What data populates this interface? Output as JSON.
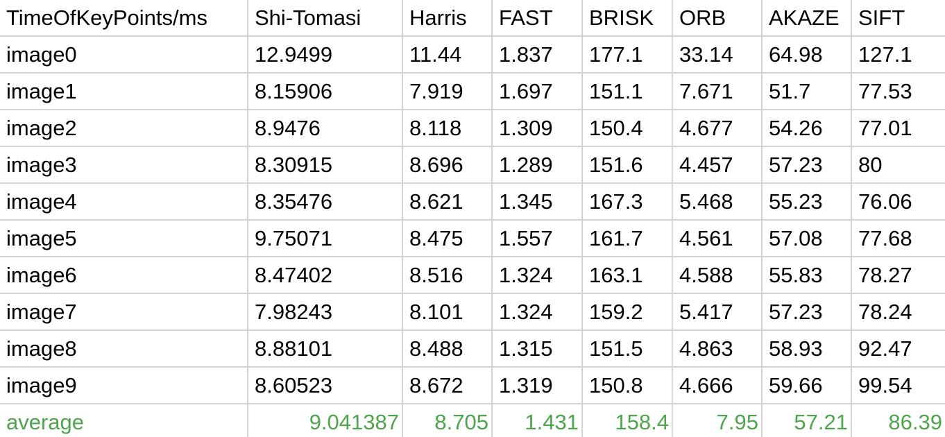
{
  "sheet": {
    "header": [
      "TimeOfKeyPoints/ms",
      "Shi-Tomasi",
      "Harris",
      "FAST",
      "BRISK",
      "ORB",
      "AKAZE",
      "SIFT"
    ],
    "rows": [
      [
        "image0",
        "12.9499",
        "11.44",
        "1.837",
        "177.1",
        "33.14",
        "64.98",
        "127.1"
      ],
      [
        "image1",
        "8.15906",
        "7.919",
        "1.697",
        "151.1",
        "7.671",
        "51.7",
        "77.53"
      ],
      [
        "image2",
        "8.9476",
        "8.118",
        "1.309",
        "150.4",
        "4.677",
        "54.26",
        "77.01"
      ],
      [
        "image3",
        "8.30915",
        "8.696",
        "1.289",
        "151.6",
        "4.457",
        "57.23",
        "80"
      ],
      [
        "image4",
        "8.35476",
        "8.621",
        "1.345",
        "167.3",
        "5.468",
        "55.23",
        "76.06"
      ],
      [
        "image5",
        "9.75071",
        "8.475",
        "1.557",
        "161.7",
        "4.561",
        "57.08",
        "77.68"
      ],
      [
        "image6",
        "8.47402",
        "8.516",
        "1.324",
        "163.1",
        "4.588",
        "55.83",
        "78.27"
      ],
      [
        "image7",
        "7.98243",
        "8.101",
        "1.324",
        "159.2",
        "5.417",
        "57.23",
        "78.24"
      ],
      [
        "image8",
        "8.88101",
        "8.488",
        "1.315",
        "151.5",
        "4.863",
        "58.93",
        "92.47"
      ],
      [
        "image9",
        "8.60523",
        "8.672",
        "1.319",
        "150.8",
        "4.666",
        "59.66",
        "99.54"
      ]
    ],
    "average": [
      "average",
      "9.041387",
      "8.705",
      "1.431",
      "158.4",
      "7.95",
      "57.21",
      "86.39"
    ],
    "colors": {
      "text": "#000000",
      "gridline": "#d4d4d4",
      "average_text": "#4ea54c",
      "background": "#ffffff"
    }
  }
}
